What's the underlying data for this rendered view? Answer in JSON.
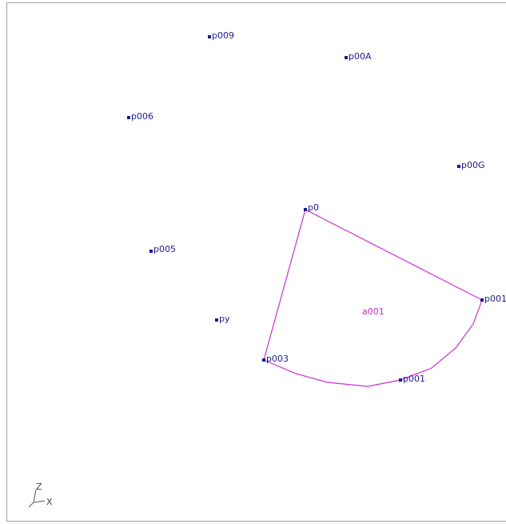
{
  "nodes": [
    {
      "label": "p009"
    },
    {
      "label": "p00A"
    },
    {
      "label": "p006"
    },
    {
      "label": "p00G"
    },
    {
      "label": "p0"
    },
    {
      "label": "p005"
    },
    {
      "label": "p001"
    },
    {
      "label": "py"
    },
    {
      "label": "p003"
    },
    {
      "label": "p001"
    }
  ],
  "area": {
    "label": "a001"
  },
  "axes": {
    "z": "Z",
    "x": "X"
  }
}
